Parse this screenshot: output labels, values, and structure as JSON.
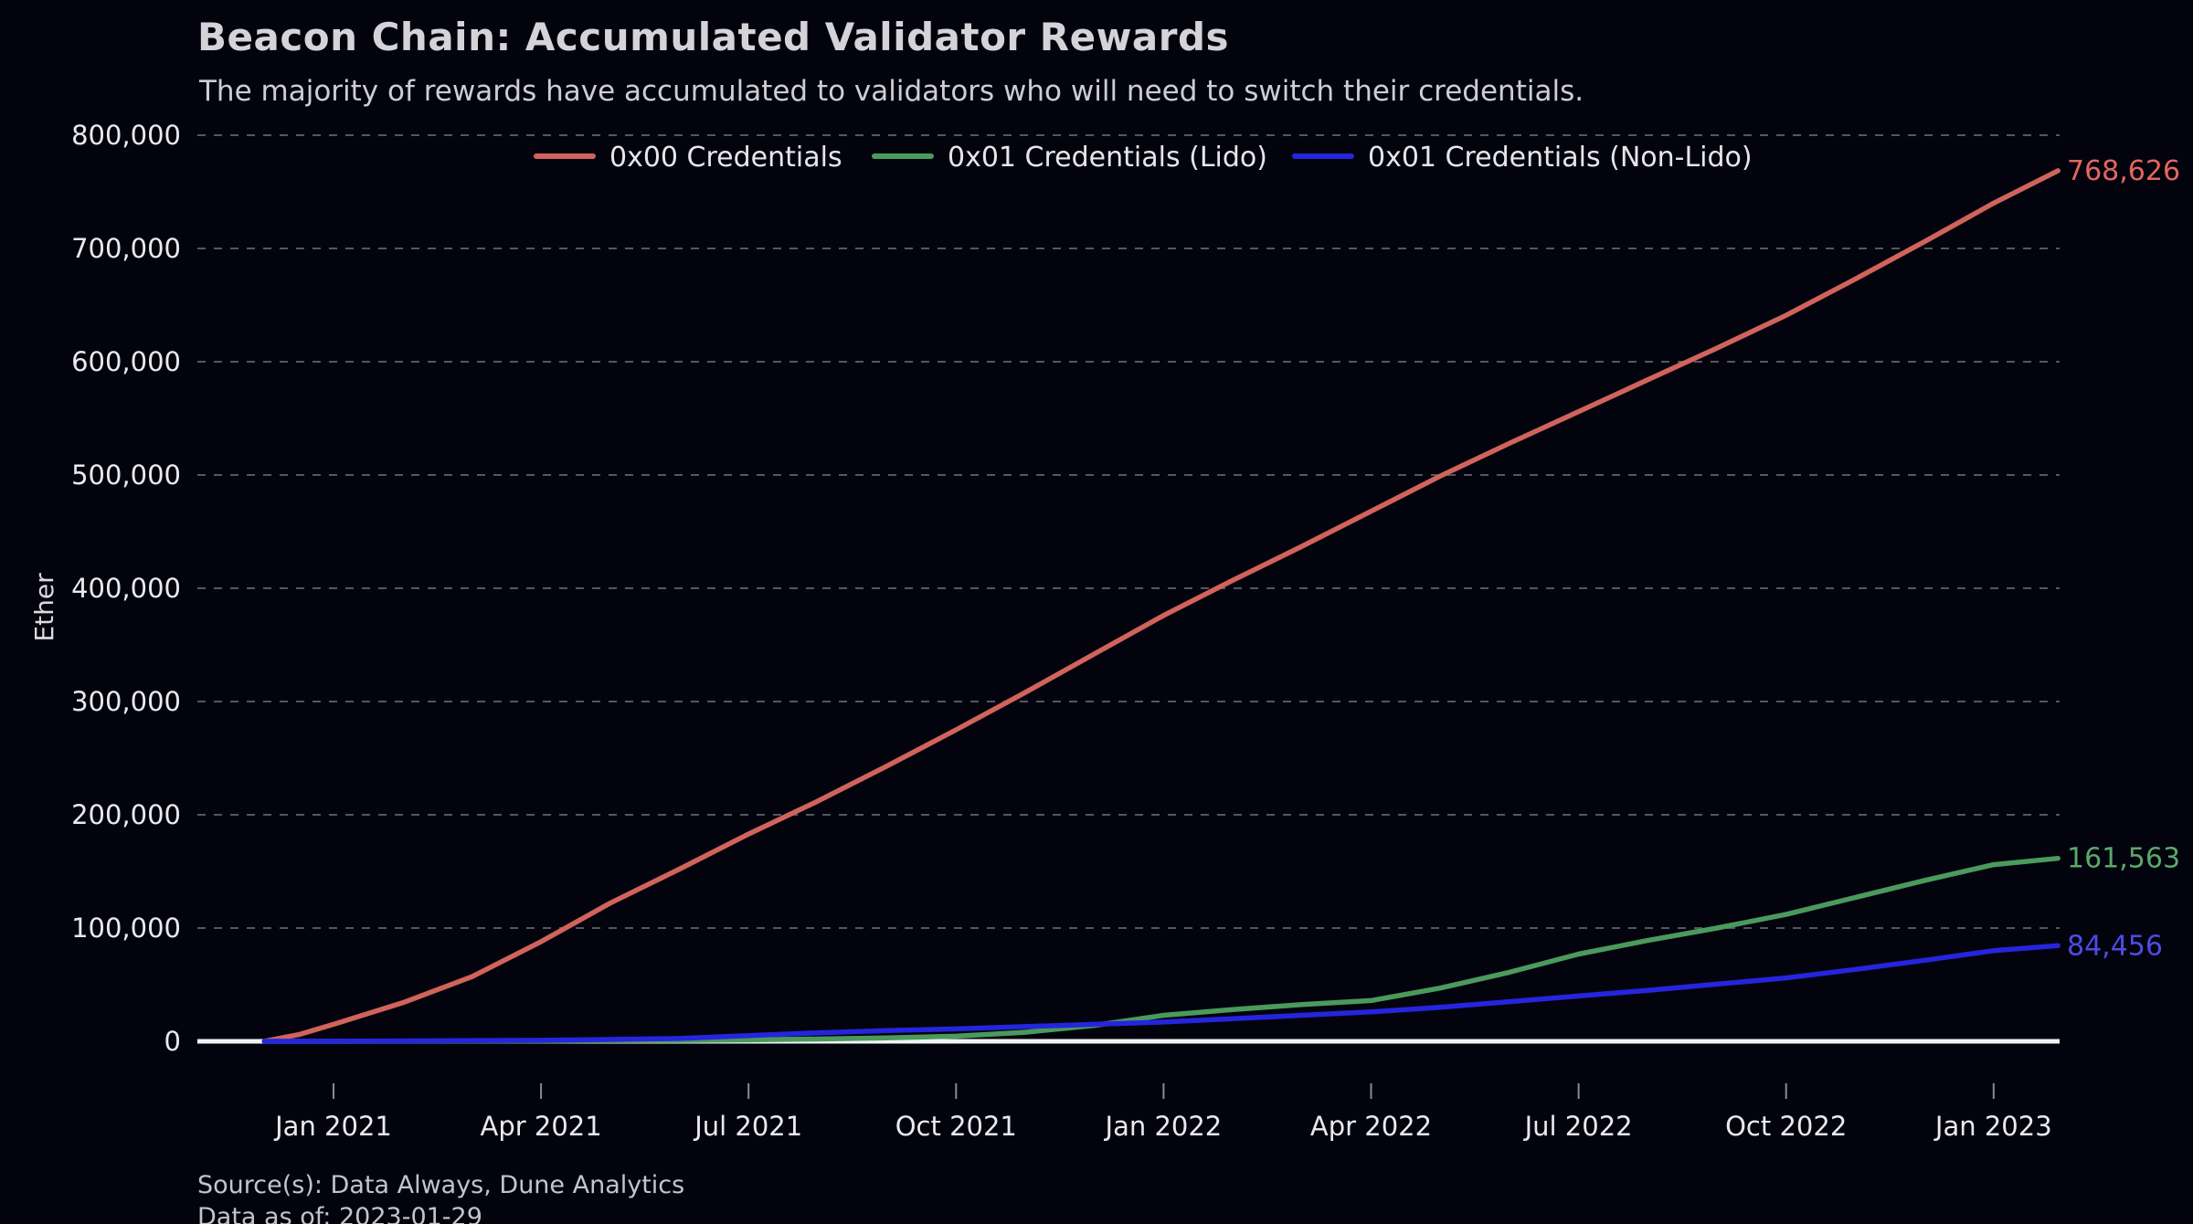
{
  "header": {
    "title": "Beacon Chain: Accumulated Validator Rewards",
    "subtitle": "The majority of rewards have accumulated to validators who will need to switch their credentials."
  },
  "footer": {
    "source": "Source(s): Data Always, Dune Analytics",
    "data_as_of": "Data as of: 2023-01-29"
  },
  "theme": {
    "background": "#03030e",
    "title_color": "#d3d3d8",
    "subtitle_color": "#cdcdd3",
    "tick_label_color": "#e9e9ee",
    "legend_text_color": "#e6e6ea",
    "axis_title_color": "#dcdce0",
    "gridline_color": "#565660",
    "baseline_color": "#f2f2f4",
    "tick_mark_color": "#8a8a92",
    "footer_color": "#c4c4ca"
  },
  "chart_data": {
    "type": "line",
    "title": "Beacon Chain: Accumulated Validator Rewards",
    "subtitle": "The majority of rewards have accumulated to validators who will need to switch their credentials.",
    "xlabel": "",
    "ylabel": "Ether",
    "ylim": [
      0,
      800000
    ],
    "grid": "horizontal-dashed",
    "legend_position": "top-center",
    "x_unit": "months since Dec 2020 (t=0 is 2020-12-01, data ends 2023-01-29)",
    "y_ticks": [
      0,
      100000,
      200000,
      300000,
      400000,
      500000,
      600000,
      700000,
      800000
    ],
    "y_tick_labels": [
      "0",
      "100,000",
      "200,000",
      "300,000",
      "400,000",
      "500,000",
      "600,000",
      "700,000",
      "800,000"
    ],
    "x_ticks": [
      {
        "t": 1,
        "label": "Jan 2021"
      },
      {
        "t": 4,
        "label": "Apr 2021"
      },
      {
        "t": 7,
        "label": "Jul 2021"
      },
      {
        "t": 10,
        "label": "Oct 2021"
      },
      {
        "t": 13,
        "label": "Jan 2022"
      },
      {
        "t": 16,
        "label": "Apr 2022"
      },
      {
        "t": 19,
        "label": "Jul 2022"
      },
      {
        "t": 22,
        "label": "Oct 2022"
      },
      {
        "t": 25,
        "label": "Jan 2023"
      }
    ],
    "series": [
      {
        "name": "0x00 Credentials",
        "color": "#d0635b",
        "label_color": "#e2675e",
        "end_value": 768626,
        "end_label": "768,626",
        "points": [
          [
            0,
            0
          ],
          [
            0.5,
            6000
          ],
          [
            1,
            15000
          ],
          [
            2,
            34000
          ],
          [
            3,
            57000
          ],
          [
            4,
            88000
          ],
          [
            5,
            122000
          ],
          [
            6,
            152000
          ],
          [
            7,
            183000
          ],
          [
            8,
            212000
          ],
          [
            9,
            243000
          ],
          [
            10,
            275000
          ],
          [
            11,
            308000
          ],
          [
            12,
            342000
          ],
          [
            13,
            376000
          ],
          [
            14,
            407000
          ],
          [
            15,
            437000
          ],
          [
            16,
            468000
          ],
          [
            17,
            499000
          ],
          [
            18,
            528000
          ],
          [
            19,
            556000
          ],
          [
            20,
            584000
          ],
          [
            21,
            612000
          ],
          [
            22,
            641000
          ],
          [
            23,
            673000
          ],
          [
            24,
            706000
          ],
          [
            25,
            740000
          ],
          [
            25.93,
            768626
          ]
        ]
      },
      {
        "name": "0x01 Credentials (Lido)",
        "color": "#4a9a5c",
        "label_color": "#5aa86b",
        "end_value": 161563,
        "end_label": "161,563",
        "points": [
          [
            0,
            0
          ],
          [
            2,
            100
          ],
          [
            4,
            300
          ],
          [
            6,
            800
          ],
          [
            7,
            1300
          ],
          [
            8,
            2000
          ],
          [
            9,
            3000
          ],
          [
            10,
            4500
          ],
          [
            11,
            8000
          ],
          [
            12,
            14000
          ],
          [
            13,
            23000
          ],
          [
            14,
            28000
          ],
          [
            15,
            32500
          ],
          [
            16,
            36000
          ],
          [
            17,
            47000
          ],
          [
            18,
            61000
          ],
          [
            19,
            77000
          ],
          [
            20,
            89000
          ],
          [
            21,
            100000
          ],
          [
            22,
            112000
          ],
          [
            23,
            127000
          ],
          [
            24,
            142000
          ],
          [
            25,
            156000
          ],
          [
            25.93,
            161563
          ]
        ]
      },
      {
        "name": "0x01 Credentials (Non-Lido)",
        "color": "#2525dd",
        "label_color": "#4c4ce4",
        "end_value": 84456,
        "end_label": "84,456",
        "points": [
          [
            0,
            0
          ],
          [
            2,
            300
          ],
          [
            4,
            900
          ],
          [
            6,
            2500
          ],
          [
            7,
            5000
          ],
          [
            8,
            7500
          ],
          [
            9,
            9500
          ],
          [
            10,
            11000
          ],
          [
            11,
            13000
          ],
          [
            12,
            15000
          ],
          [
            13,
            17000
          ],
          [
            14,
            20000
          ],
          [
            15,
            23000
          ],
          [
            16,
            26000
          ],
          [
            17,
            30000
          ],
          [
            18,
            35000
          ],
          [
            19,
            40000
          ],
          [
            20,
            45000
          ],
          [
            21,
            50500
          ],
          [
            22,
            56000
          ],
          [
            23,
            63500
          ],
          [
            24,
            71500
          ],
          [
            25,
            80000
          ],
          [
            25.93,
            84456
          ]
        ]
      }
    ]
  }
}
